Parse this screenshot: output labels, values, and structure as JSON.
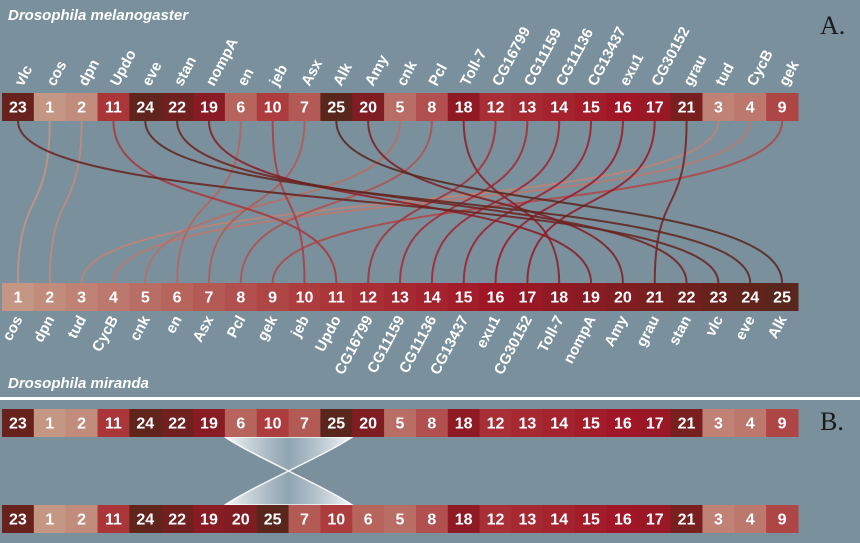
{
  "species_top": "Drosophila melanogaster",
  "species_bottom": "Drosophila miranda",
  "panel_a": "A.",
  "panel_b": "B.",
  "colors": {
    "background": "#7a909c",
    "connector": "#7a3a2a"
  },
  "melanogaster": [
    {
      "id": 23,
      "gene": "vlc"
    },
    {
      "id": 1,
      "gene": "cos"
    },
    {
      "id": 2,
      "gene": "dpn"
    },
    {
      "id": 11,
      "gene": "Updo"
    },
    {
      "id": 24,
      "gene": "eve"
    },
    {
      "id": 22,
      "gene": "stan"
    },
    {
      "id": 19,
      "gene": "nompA"
    },
    {
      "id": 6,
      "gene": "en"
    },
    {
      "id": 10,
      "gene": "jeb"
    },
    {
      "id": 7,
      "gene": "Asx"
    },
    {
      "id": 25,
      "gene": "Alk"
    },
    {
      "id": 20,
      "gene": "Amy"
    },
    {
      "id": 5,
      "gene": "cnk"
    },
    {
      "id": 8,
      "gene": "Pcl"
    },
    {
      "id": 18,
      "gene": "Toll-7"
    },
    {
      "id": 12,
      "gene": "CG16799"
    },
    {
      "id": 13,
      "gene": "CG11159"
    },
    {
      "id": 14,
      "gene": "CG11136"
    },
    {
      "id": 15,
      "gene": "CG13437"
    },
    {
      "id": 16,
      "gene": "exu1"
    },
    {
      "id": 17,
      "gene": "CG30152"
    },
    {
      "id": 21,
      "gene": "grau"
    },
    {
      "id": 3,
      "gene": "tud"
    },
    {
      "id": 4,
      "gene": "CycB"
    },
    {
      "id": 9,
      "gene": "gek"
    }
  ],
  "miranda": [
    {
      "id": 1,
      "gene": "cos"
    },
    {
      "id": 2,
      "gene": "dpn"
    },
    {
      "id": 3,
      "gene": "tud"
    },
    {
      "id": 4,
      "gene": "CycB"
    },
    {
      "id": 5,
      "gene": "cnk"
    },
    {
      "id": 6,
      "gene": "en"
    },
    {
      "id": 7,
      "gene": "Asx"
    },
    {
      "id": 8,
      "gene": "Pcl"
    },
    {
      "id": 9,
      "gene": "gek"
    },
    {
      "id": 10,
      "gene": "jeb"
    },
    {
      "id": 11,
      "gene": "Updo"
    },
    {
      "id": 12,
      "gene": "CG16799"
    },
    {
      "id": 13,
      "gene": "CG11159"
    },
    {
      "id": 14,
      "gene": "CG11136"
    },
    {
      "id": 15,
      "gene": "CG13437"
    },
    {
      "id": 16,
      "gene": "exu1"
    },
    {
      "id": 17,
      "gene": "CG30152"
    },
    {
      "id": 18,
      "gene": "Toll-7"
    },
    {
      "id": 19,
      "gene": "nompA"
    },
    {
      "id": 20,
      "gene": "Amy"
    },
    {
      "id": 21,
      "gene": "grau"
    },
    {
      "id": 22,
      "gene": "stan"
    },
    {
      "id": 23,
      "gene": "vlc"
    },
    {
      "id": 24,
      "gene": "eve"
    },
    {
      "id": 25,
      "gene": "Alk"
    }
  ],
  "panel_b_top": [
    23,
    1,
    2,
    11,
    24,
    22,
    19,
    6,
    10,
    7,
    25,
    20,
    5,
    8,
    18,
    12,
    13,
    14,
    15,
    16,
    17,
    21,
    3,
    4,
    9
  ],
  "panel_b_bottom": [
    23,
    1,
    2,
    11,
    24,
    22,
    19,
    20,
    25,
    7,
    10,
    6,
    5,
    8,
    18,
    12,
    13,
    14,
    15,
    16,
    17,
    21,
    3,
    4,
    9
  ]
}
